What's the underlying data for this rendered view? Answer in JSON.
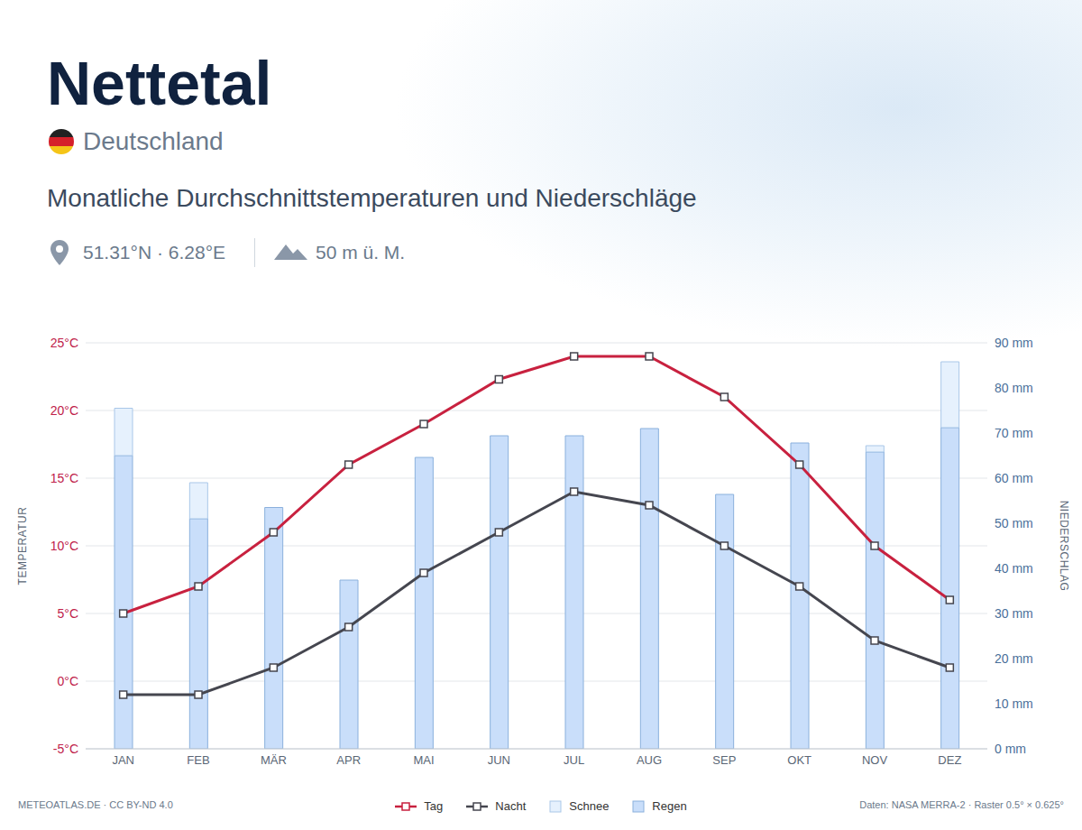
{
  "chart_data": {
    "type": "bar",
    "title": "Nettetal",
    "subtitle": "Monatliche Durchschnittstemperaturen und Niederschläge",
    "annotations": {
      "country": "Deutschland",
      "coordinates": "51.31°N · 6.28°E",
      "elevation": "50 m ü. M.",
      "credit": "METEOATLAS.DE · CC BY-ND 4.0",
      "source": "Daten: NASA MERRA-2 · Raster 0.5° × 0.625°"
    },
    "y_label": "TEMPERATUR",
    "y2_label": "NIEDERSCHLAG",
    "categories": [
      "JAN",
      "FEB",
      "MÄR",
      "APR",
      "MAI",
      "JUN",
      "JUL",
      "AUG",
      "SEP",
      "OKT",
      "NOV",
      "DEZ"
    ],
    "ylim": [
      -5,
      25
    ],
    "yticks": [
      {
        "value": -5,
        "label": "-5°C"
      },
      {
        "value": 0,
        "label": "0°C"
      },
      {
        "value": 5,
        "label": "5°C"
      },
      {
        "value": 10,
        "label": "10°C"
      },
      {
        "value": 15,
        "label": "15°C"
      },
      {
        "value": 20,
        "label": "20°C"
      },
      {
        "value": 25,
        "label": "25°C"
      }
    ],
    "y2lim": [
      0,
      90
    ],
    "y2ticks": [
      {
        "value": 0,
        "label": "0 mm"
      },
      {
        "value": 10,
        "label": "10 mm"
      },
      {
        "value": 20,
        "label": "20 mm"
      },
      {
        "value": 30,
        "label": "30 mm"
      },
      {
        "value": 40,
        "label": "40 mm"
      },
      {
        "value": 50,
        "label": "50 mm"
      },
      {
        "value": 60,
        "label": "60 mm"
      },
      {
        "value": 70,
        "label": "70 mm"
      },
      {
        "value": 80,
        "label": "80 mm"
      },
      {
        "value": 90,
        "label": "90 mm"
      }
    ],
    "grid": true,
    "stacked": true,
    "legend": "bottom",
    "series": [
      {
        "name": "Tag",
        "type": "line",
        "color": "#c8213f",
        "marker": "square",
        "values": [
          5,
          7,
          11,
          16,
          19,
          22.3,
          24,
          24,
          21,
          16,
          10,
          6
        ]
      },
      {
        "name": "Nacht",
        "type": "line",
        "color": "#45464f",
        "marker": "square",
        "values": [
          -1,
          -1,
          1,
          4,
          8,
          11,
          14,
          13,
          10,
          7,
          3,
          1
        ]
      },
      {
        "name": "Schnee",
        "type": "bar",
        "axis": "y2",
        "color": "#e6f1fd",
        "values": [
          10.5,
          8,
          0,
          0,
          0,
          0,
          0,
          0,
          0,
          0,
          1.4,
          14.6
        ]
      },
      {
        "name": "Regen",
        "type": "bar",
        "axis": "y2",
        "color": "#c9defa",
        "values": [
          65,
          51,
          53.5,
          37.4,
          64.6,
          69.4,
          69.4,
          71,
          56.4,
          67.8,
          65.8,
          71.2
        ]
      }
    ]
  }
}
